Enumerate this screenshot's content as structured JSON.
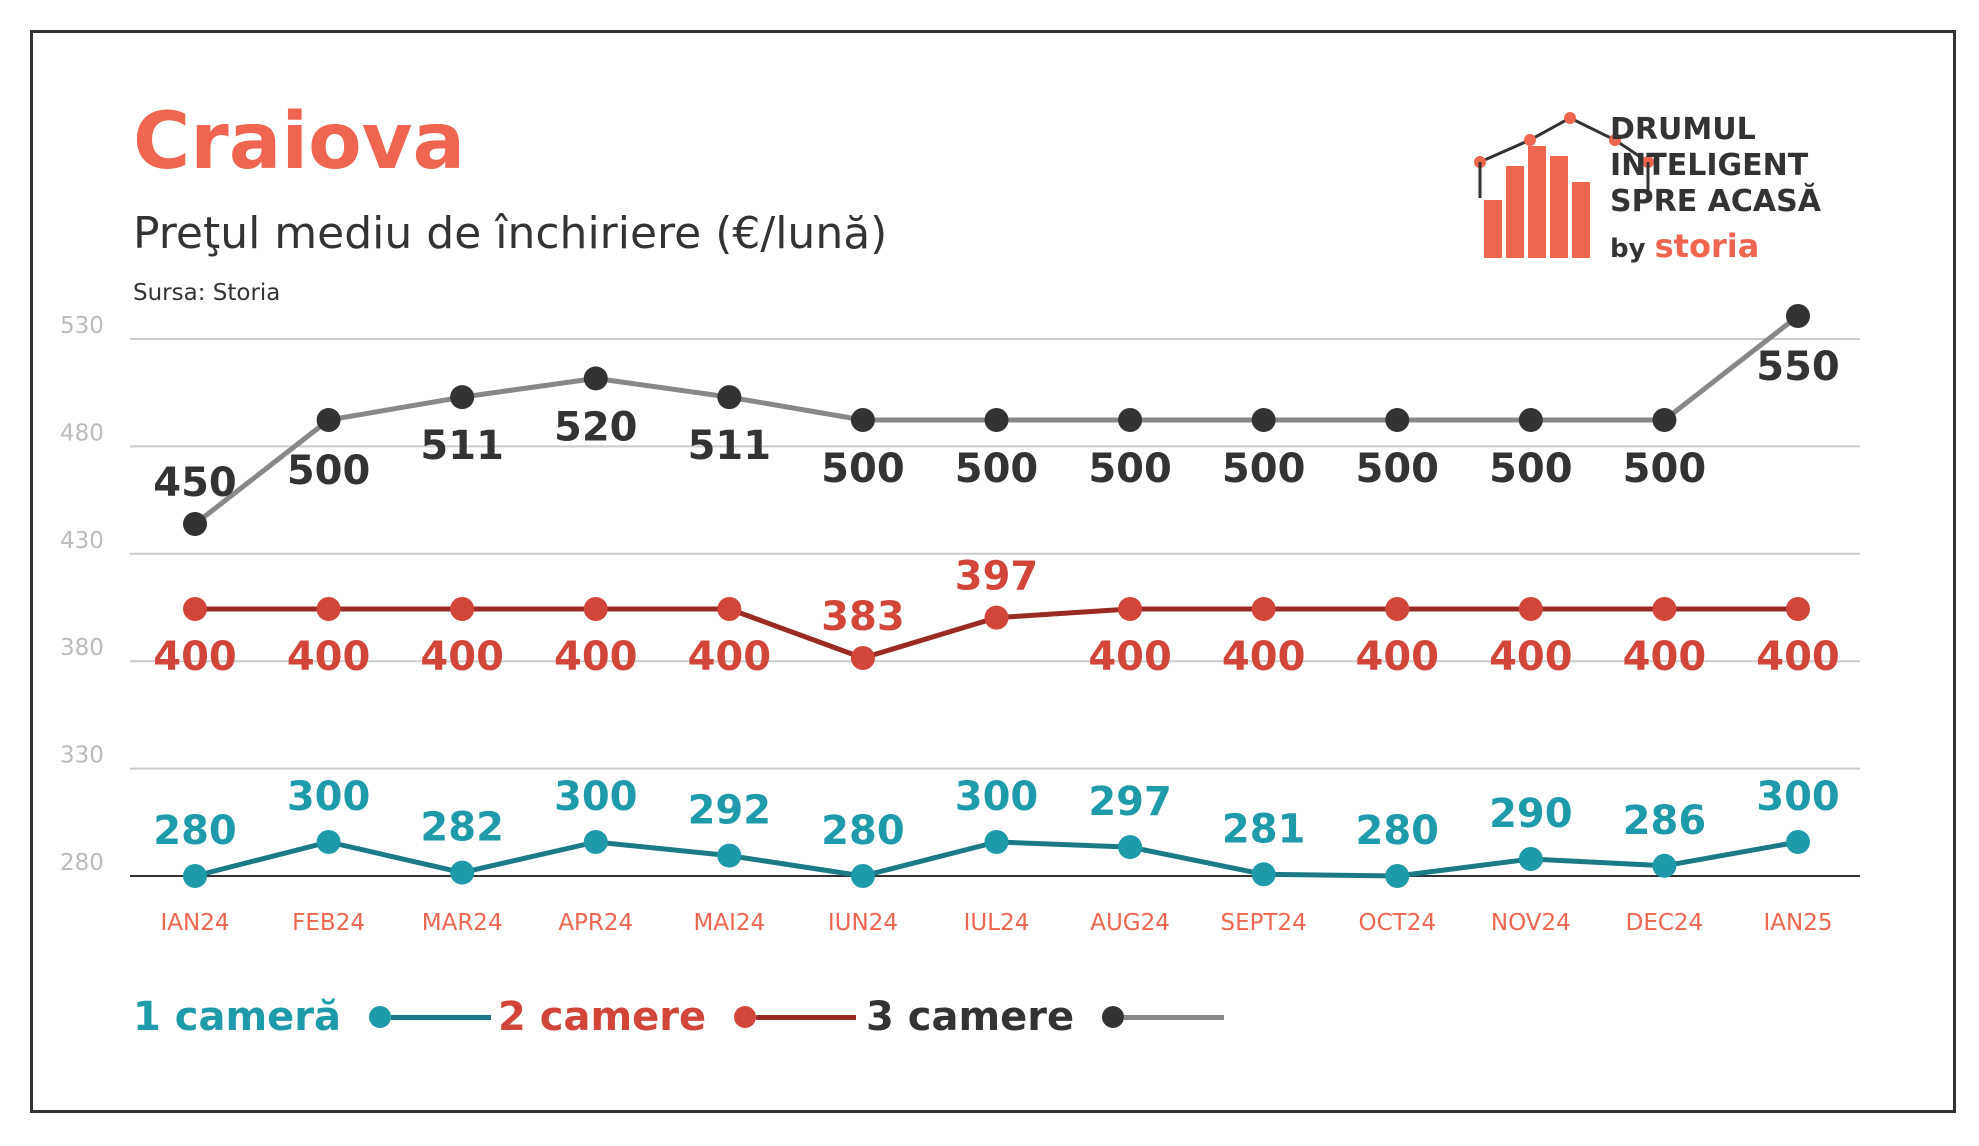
{
  "header": {
    "title": "Craiova",
    "subtitle": "Preţul mediu de închiriere (€/lună)",
    "source": "Sursa: Storia"
  },
  "logo": {
    "line1": "DRUMUL",
    "line2": "INTELIGENT",
    "line3": "SPRE ACASĂ",
    "by": "by",
    "brand": "storia"
  },
  "colors": {
    "accent": "#ef6550",
    "series_1": "#1f9aaa",
    "series_1_line": "#1a7a86",
    "series_2": "#d2463a",
    "series_2_line": "#9a2b24",
    "series_3": "#333333",
    "series_3_line": "#888888",
    "axis_text": "#bbbbbb",
    "grid": "#cccccc"
  },
  "chart_data": {
    "type": "line",
    "categories": [
      "IAN24",
      "FEB24",
      "MAR24",
      "APR24",
      "MAI24",
      "IUN24",
      "IUL24",
      "AUG24",
      "SEPT24",
      "OCT24",
      "NOV24",
      "DEC24",
      "IAN25"
    ],
    "yticks": [
      280,
      330,
      380,
      430,
      480,
      530
    ],
    "ylim": [
      280,
      530
    ],
    "grid": true,
    "legend_position": "bottom-left",
    "series": [
      {
        "name": "1 cameră",
        "values": [
          280,
          300,
          282,
          300,
          292,
          280,
          300,
          297,
          281,
          280,
          290,
          286,
          300
        ]
      },
      {
        "name": "2 camere",
        "values": [
          400,
          400,
          400,
          400,
          400,
          383,
          397,
          400,
          400,
          400,
          400,
          400,
          400
        ]
      },
      {
        "name": "3 camere",
        "values": [
          450,
          500,
          511,
          520,
          511,
          500,
          500,
          500,
          500,
          500,
          500,
          500,
          550
        ]
      }
    ]
  }
}
